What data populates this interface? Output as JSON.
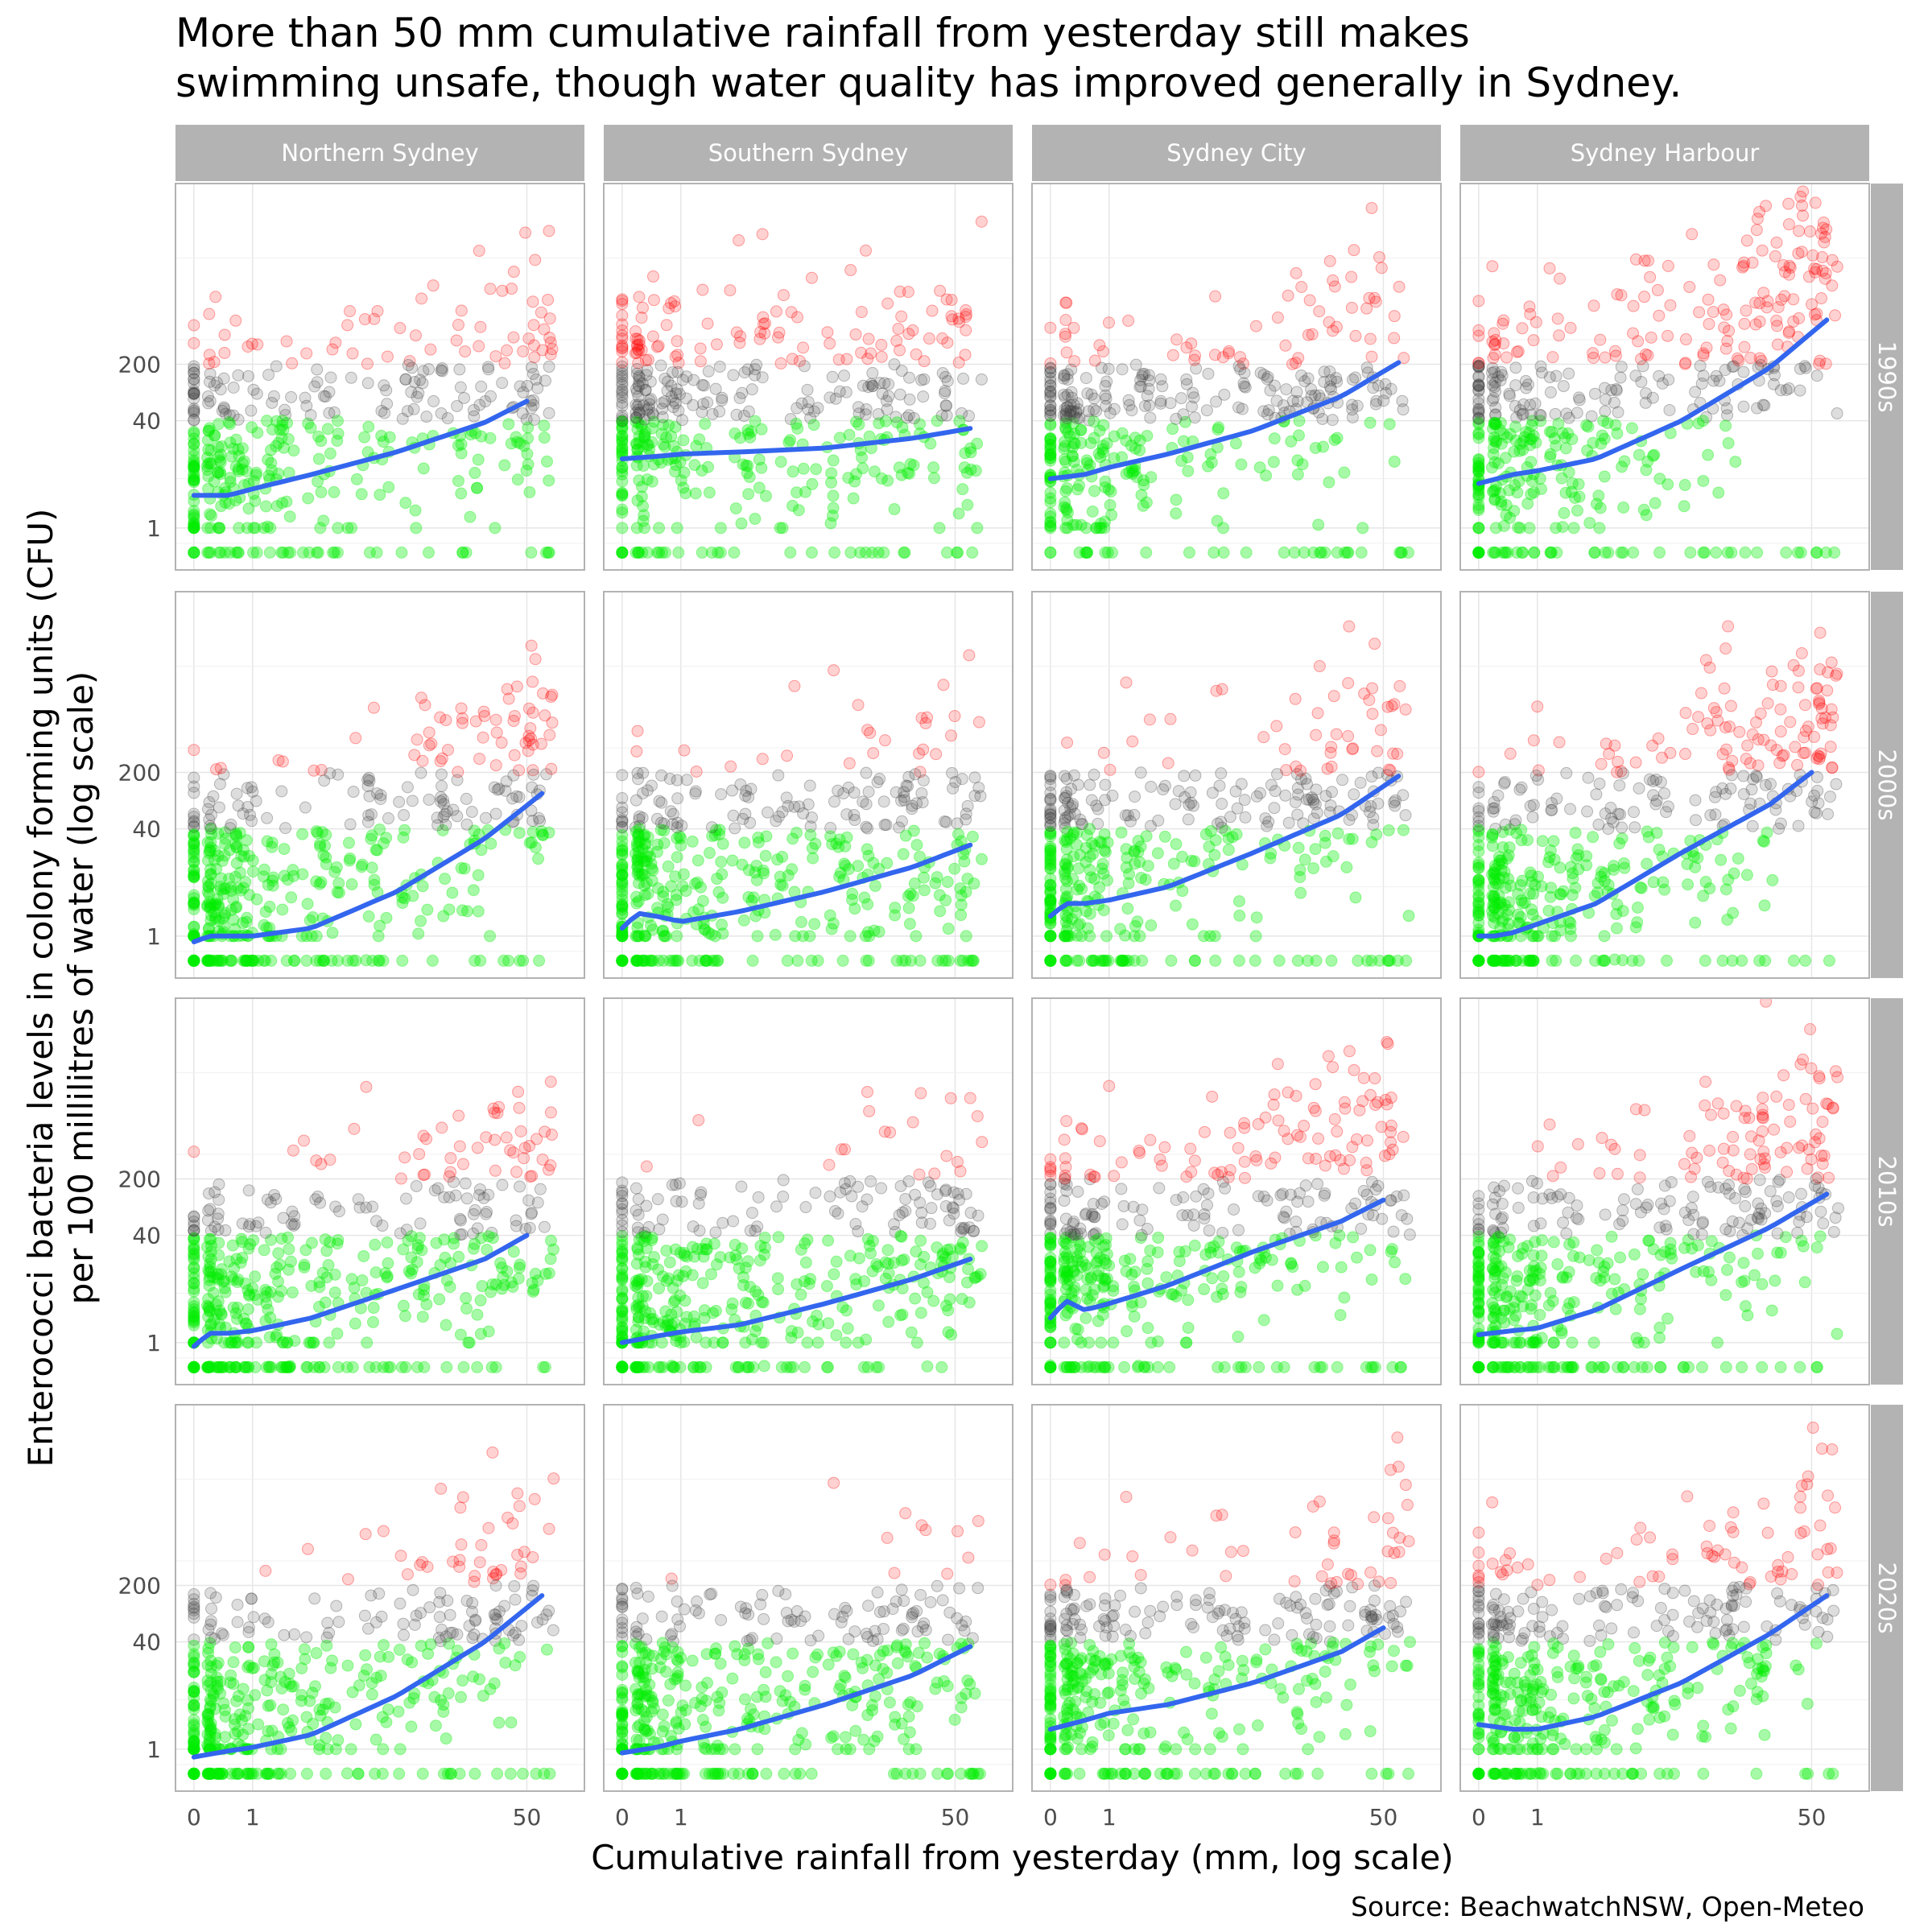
{
  "title_lines": [
    "More than 50 mm cumulative rainfall from yesterday still makes",
    "swimming unsafe, though water quality has improved generally in Sydney."
  ],
  "caption": "Source: BeachwatchNSW, Open-Meteo",
  "colors": {
    "safe": "#00ee00",
    "moderate": "#444444",
    "unsafe": "#ff0000",
    "smooth": "#3366ee",
    "strip": "#b3b3b3",
    "panel_border": "#b3b3b3",
    "grid": "#e6e6e6"
  },
  "chart_data": {
    "type": "scatter",
    "facet_columns": [
      "Northern Sydney",
      "Southern Sydney",
      "Sydney City",
      "Sydney Harbour"
    ],
    "facet_rows": [
      "1990s",
      "2000s",
      "2010s",
      "2020s"
    ],
    "xlabel": "Cumulative rainfall from yesterday (mm, log scale)",
    "ylabel_lines": [
      "Enterococci bacteria levels in colony forming units (CFU)",
      "per 100 millilitres of water (log scale)"
    ],
    "x_scale": "log1p",
    "y_scale": "log1p",
    "x_ticks": [
      0,
      1,
      50
    ],
    "x_tick_labels": [
      "0",
      "1",
      "50"
    ],
    "y_ticks": [
      1,
      40,
      200
    ],
    "y_tick_labels": [
      "1",
      "40",
      "200"
    ],
    "xlim": [
      0,
      80
    ],
    "ylim": [
      0,
      20000
    ],
    "grid": true,
    "point_color_classes": [
      {
        "range": "< 40 CFU",
        "color": "#00ee00"
      },
      {
        "range": "40–200 CFU",
        "color": "#444444"
      },
      {
        "range": "> 200 CFU",
        "color": "#ff0000"
      }
    ],
    "smooth_trend_series": [
      {
        "column": "Northern Sydney",
        "row": "1990s",
        "x": [
          0,
          0.5,
          1,
          3,
          10,
          30,
          50
        ],
        "y": [
          4,
          4,
          5,
          8,
          16,
          38,
          70
        ]
      },
      {
        "column": "Southern Sydney",
        "row": "1990s",
        "x": [
          0,
          0.5,
          1,
          3,
          10,
          30,
          60
        ],
        "y": [
          13,
          14,
          15,
          16,
          18,
          24,
          32
        ]
      },
      {
        "column": "Sydney City",
        "row": "1990s",
        "x": [
          0,
          0.5,
          1,
          3,
          10,
          30,
          60
        ],
        "y": [
          7,
          8,
          10,
          15,
          30,
          80,
          210
        ]
      },
      {
        "column": "Sydney Harbour",
        "row": "1990s",
        "x": [
          0,
          0.5,
          1,
          3,
          10,
          30,
          60
        ],
        "y": [
          6,
          8,
          9,
          13,
          40,
          180,
          700
        ]
      },
      {
        "column": "Northern Sydney",
        "row": "2000s",
        "x": [
          0,
          0.2,
          0.5,
          1,
          3,
          10,
          30,
          60
        ],
        "y": [
          0.7,
          1,
          1,
          1,
          1.5,
          6,
          30,
          110
        ]
      },
      {
        "column": "Southern Sydney",
        "row": "2000s",
        "x": [
          0,
          0.2,
          0.5,
          1,
          3,
          10,
          30,
          60
        ],
        "y": [
          1.5,
          2.8,
          2.5,
          2,
          3,
          6,
          13,
          25
        ]
      },
      {
        "column": "Sydney City",
        "row": "2000s",
        "x": [
          0,
          0.2,
          0.5,
          1,
          3,
          10,
          30,
          60
        ],
        "y": [
          2.5,
          4,
          4,
          4.5,
          7,
          20,
          60,
          180
        ]
      },
      {
        "column": "Sydney Harbour",
        "row": "2000s",
        "x": [
          0,
          0.2,
          0.5,
          1,
          3,
          10,
          30,
          50
        ],
        "y": [
          1,
          1,
          1.2,
          1.8,
          4,
          20,
          80,
          200
        ]
      },
      {
        "column": "Northern Sydney",
        "row": "2010s",
        "x": [
          0,
          0.2,
          0.5,
          1,
          3,
          10,
          30,
          50
        ],
        "y": [
          0.8,
          1.6,
          1.6,
          1.8,
          3,
          8,
          20,
          40
        ]
      },
      {
        "column": "Southern Sydney",
        "row": "2010s",
        "x": [
          0,
          0.5,
          1,
          3,
          10,
          30,
          60
        ],
        "y": [
          1,
          1.4,
          1.7,
          2.3,
          5,
          11,
          20
        ]
      },
      {
        "column": "Sydney City",
        "row": "2010s",
        "x": [
          0,
          0.2,
          0.5,
          1,
          3,
          10,
          30,
          50
        ],
        "y": [
          3,
          5.5,
          4,
          5,
          9,
          25,
          60,
          110
        ]
      },
      {
        "column": "Sydney Harbour",
        "row": "2010s",
        "x": [
          0,
          0.5,
          1,
          3,
          10,
          30,
          60
        ],
        "y": [
          1.5,
          1.8,
          2,
          4,
          15,
          50,
          130
        ]
      },
      {
        "column": "Northern Sydney",
        "row": "2020s",
        "x": [
          0,
          0.5,
          1,
          3,
          10,
          30,
          60
        ],
        "y": [
          0.6,
          0.9,
          1.1,
          2,
          8,
          40,
          150
        ]
      },
      {
        "column": "Southern Sydney",
        "row": "2020s",
        "x": [
          0,
          0.5,
          1,
          3,
          10,
          30,
          60
        ],
        "y": [
          0.8,
          1.1,
          1.5,
          2.5,
          6,
          15,
          35
        ]
      },
      {
        "column": "Sydney City",
        "row": "2020s",
        "x": [
          0,
          0.5,
          1,
          3,
          10,
          30,
          50
        ],
        "y": [
          2.5,
          3.5,
          4.5,
          6,
          12,
          30,
          60
        ]
      },
      {
        "column": "Sydney Harbour",
        "row": "2020s",
        "x": [
          0,
          0.5,
          1,
          3,
          10,
          30,
          60
        ],
        "y": [
          3,
          2.5,
          2.5,
          4,
          12,
          50,
          150
        ]
      }
    ],
    "red_point_density": [
      [
        1,
        3,
        1,
        3
      ],
      [
        2,
        1,
        1,
        4
      ],
      [
        2,
        1,
        2,
        3
      ],
      [
        1,
        0.6,
        1,
        2
      ]
    ]
  }
}
